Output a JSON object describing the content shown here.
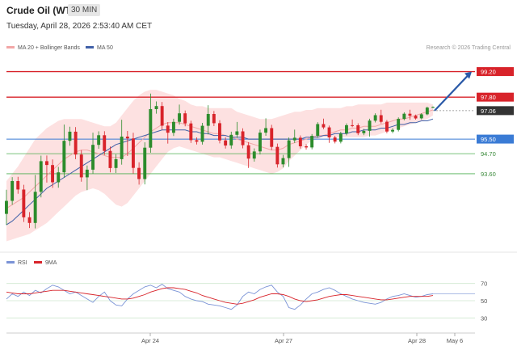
{
  "header": {
    "title": "Crude Oil (WTI)",
    "timeframe": "30 MIN",
    "datetime": "Tuesday, April 28, 2026 2:53:40 AM CET"
  },
  "legend": {
    "ma20_bb": "MA 20 + Bollinger Bands",
    "ma50": "MA 50",
    "credit": "Research © 2026 Trading Central",
    "rsi": "RSI",
    "rsi_ma": "9MA"
  },
  "colors": {
    "candle_up": "#2c8c2c",
    "candle_down": "#d8232a",
    "bb_fill": "#fde1e1",
    "ma20": "#f2a6a6",
    "ma50": "#4060a8",
    "resistance": "#d8232a",
    "pivot": "#3a7bd5",
    "support": "#4caf50",
    "current": "#333333",
    "rsi_line": "#7a93d6",
    "rsi_ma": "#d8232a",
    "arrow": "#2b5aa8"
  },
  "chart_data": [
    {
      "type": "candlestick",
      "ylim": [
        89.3,
        100.2
      ],
      "x_ticks": [
        "Apr 24",
        "Apr 27",
        "Apr 28",
        "May 6"
      ],
      "levels": [
        {
          "label": "99.20",
          "value": 99.2,
          "kind": "resistance"
        },
        {
          "label": "97.80",
          "value": 97.8,
          "kind": "resistance"
        },
        {
          "label": "97.06",
          "value": 97.06,
          "kind": "current"
        },
        {
          "label": "95.50",
          "value": 95.5,
          "kind": "pivot"
        },
        {
          "label": "94.70",
          "value": 94.7,
          "kind": "support"
        },
        {
          "label": "93.60",
          "value": 93.6,
          "kind": "support"
        }
      ],
      "target_arrow": {
        "from": 97.06,
        "to": 99.2
      },
      "series": [
        {
          "name": "MA 20 + Bollinger Bands",
          "values": [
            91.7,
            91.9,
            92.1,
            92.3,
            92.6,
            92.9,
            93.2,
            93.5,
            93.8,
            94.1,
            94.4,
            94.6,
            94.8,
            94.9,
            94.9,
            94.8,
            94.7,
            94.6,
            94.5,
            94.5,
            94.5,
            94.7,
            95.0,
            95.3,
            95.6,
            95.9,
            96.1,
            96.3,
            96.4,
            96.4,
            96.4,
            96.3,
            96.2,
            96.1,
            96.0,
            95.9,
            95.8,
            95.8,
            95.7,
            95.6,
            95.5,
            95.4,
            95.3,
            95.2,
            95.1,
            95.0,
            94.9,
            94.9,
            95.0,
            95.2,
            95.3,
            95.4,
            95.5,
            95.6,
            95.7,
            95.7,
            95.8,
            95.9,
            96.0,
            96.0,
            96.1,
            96.1,
            96.2,
            96.2,
            96.2,
            96.3,
            96.4,
            96.5,
            96.6,
            96.6,
            96.7,
            96.8,
            96.9,
            97.0,
            97.1
          ]
        },
        {
          "name": "MA 50",
          "values": [
            90.8,
            91.0,
            91.3,
            91.6,
            91.9,
            92.2,
            92.5,
            92.8,
            93.0,
            93.2,
            93.4,
            93.6,
            93.8,
            94.0,
            94.2,
            94.4,
            94.6,
            94.8,
            95.0,
            95.2,
            95.3,
            95.4,
            95.5,
            95.6,
            95.7,
            95.8,
            95.9,
            96.0,
            96.0,
            96.0,
            96.0,
            96.0,
            95.9,
            95.9,
            95.8,
            95.8,
            95.7,
            95.7,
            95.7,
            95.6,
            95.6,
            95.6,
            95.5,
            95.5,
            95.5,
            95.5,
            95.5,
            95.5,
            95.5,
            95.5,
            95.5,
            95.5,
            95.6,
            95.6,
            95.6,
            95.7,
            95.7,
            95.8,
            95.8,
            95.8,
            95.9,
            95.9,
            96.0,
            96.0,
            96.0,
            96.1,
            96.1,
            96.2,
            96.3,
            96.3,
            96.4,
            96.4,
            96.5,
            96.5,
            96.6
          ]
        },
        {
          "name": "Bollinger Upper",
          "values": [
            93.2,
            93.6,
            94.0,
            94.5,
            95.0,
            95.5,
            95.8,
            96.1,
            96.3,
            96.5,
            96.6,
            96.6,
            96.6,
            96.6,
            96.5,
            96.4,
            96.3,
            96.2,
            96.2,
            96.4,
            96.8,
            97.2,
            97.6,
            97.9,
            98.1,
            98.2,
            98.2,
            98.1,
            98.0,
            97.9,
            97.7,
            97.6,
            97.4,
            97.3,
            97.3,
            97.2,
            97.2,
            97.2,
            97.2,
            97.2,
            97.0,
            96.9,
            96.8,
            96.7,
            96.6,
            96.6,
            96.6,
            96.7,
            96.8,
            96.9,
            97.0,
            97.0,
            97.1,
            97.1,
            97.2,
            97.2,
            97.2,
            97.2,
            97.2,
            97.3,
            97.3,
            97.4,
            97.4,
            97.4,
            97.4,
            97.4,
            97.5,
            97.5,
            97.5,
            97.5,
            97.5,
            97.5,
            97.5,
            97.5,
            97.4
          ]
        },
        {
          "name": "Bollinger Lower",
          "values": [
            89.9,
            90.0,
            90.1,
            90.2,
            90.3,
            90.5,
            90.7,
            90.9,
            91.2,
            91.5,
            91.8,
            92.1,
            92.4,
            92.6,
            92.7,
            92.8,
            92.7,
            92.5,
            92.2,
            91.9,
            91.8,
            92.0,
            92.4,
            92.8,
            93.2,
            93.6,
            94.0,
            94.4,
            94.8,
            95.0,
            95.1,
            95.0,
            94.9,
            94.8,
            94.7,
            94.6,
            94.5,
            94.5,
            94.4,
            94.3,
            94.2,
            94.1,
            94.0,
            93.9,
            93.8,
            93.7,
            93.6,
            93.7,
            93.9,
            94.3,
            94.6,
            94.9,
            95.2,
            95.4,
            95.5,
            95.6,
            95.6,
            95.6,
            95.6,
            95.6,
            95.6,
            95.6,
            95.6,
            95.7,
            95.7,
            95.8,
            95.9,
            96.0,
            96.1,
            96.2,
            96.3,
            96.4,
            96.5,
            96.6,
            96.8
          ]
        }
      ]
    },
    {
      "type": "line",
      "ylim": [
        20,
        80
      ],
      "y_ticks": [
        70,
        50,
        30
      ],
      "series": [
        {
          "name": "RSI",
          "values": [
            52,
            58,
            55,
            60,
            56,
            62,
            59,
            64,
            68,
            66,
            62,
            58,
            60,
            56,
            52,
            48,
            55,
            60,
            50,
            45,
            44,
            52,
            58,
            62,
            66,
            68,
            65,
            69,
            64,
            62,
            60,
            55,
            52,
            50,
            49,
            46,
            45,
            44,
            42,
            40,
            45,
            55,
            60,
            58,
            63,
            66,
            68,
            60,
            55,
            42,
            40,
            45,
            52,
            58,
            60,
            63,
            65,
            62,
            58,
            55,
            52,
            50,
            48,
            47,
            46,
            48,
            52,
            55,
            56,
            58,
            56,
            54,
            55,
            57,
            58
          ]
        },
        {
          "name": "9MA",
          "values": [
            60,
            59,
            58,
            58,
            58,
            59,
            60,
            61,
            62,
            62,
            62,
            61,
            60,
            59,
            58,
            57,
            56,
            55,
            54,
            53,
            52,
            52,
            53,
            55,
            57,
            60,
            62,
            64,
            65,
            65,
            64,
            63,
            61,
            59,
            56,
            54,
            52,
            50,
            48,
            47,
            46,
            47,
            49,
            51,
            54,
            56,
            58,
            58,
            57,
            55,
            52,
            50,
            49,
            50,
            51,
            53,
            55,
            56,
            57,
            57,
            56,
            55,
            54,
            53,
            52,
            51,
            51,
            52,
            53,
            54,
            55,
            55,
            55,
            55,
            56
          ]
        }
      ]
    }
  ]
}
